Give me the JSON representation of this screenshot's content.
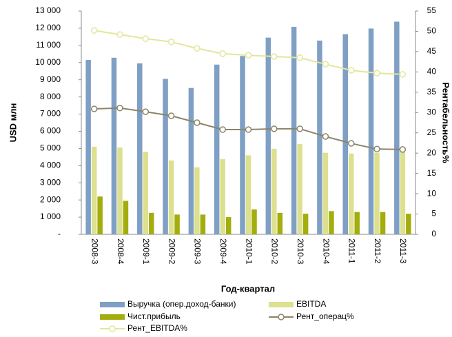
{
  "chart_data": {
    "type": "bar_line",
    "x_label": "Год-квартал",
    "y_label": "USD млн",
    "y2_label": "Рентабельность%",
    "categories": [
      "2008-3",
      "2008-4",
      "2009-1",
      "2009-2",
      "2009-3",
      "2009-4",
      "2010-1",
      "2010-2",
      "2010-3",
      "2010-4",
      "2011-1",
      "2011-2",
      "2011-3"
    ],
    "ylim": [
      0,
      13000
    ],
    "yticks": [
      {
        "value": 0,
        "label": "-"
      },
      {
        "value": 1000,
        "label": "1 000"
      },
      {
        "value": 2000,
        "label": "2 000"
      },
      {
        "value": 3000,
        "label": "3 000"
      },
      {
        "value": 4000,
        "label": "4 000"
      },
      {
        "value": 5000,
        "label": "5 000"
      },
      {
        "value": 6000,
        "label": "6 000"
      },
      {
        "value": 7000,
        "label": "7 000"
      },
      {
        "value": 8000,
        "label": "8 000"
      },
      {
        "value": 9000,
        "label": "9 000"
      },
      {
        "value": 10000,
        "label": "10 000"
      },
      {
        "value": 11000,
        "label": "11 000"
      },
      {
        "value": 12000,
        "label": "12 000"
      },
      {
        "value": 13000,
        "label": "13 000"
      }
    ],
    "y2lim": [
      0,
      55
    ],
    "y2ticks": [
      0,
      5,
      10,
      15,
      20,
      25,
      30,
      35,
      40,
      45,
      50,
      55
    ],
    "series": [
      {
        "name": "Выручка (опер.доход-банки)",
        "type": "bar",
        "color": "#7f9fc4",
        "values": [
          10150,
          10280,
          9950,
          9050,
          8520,
          9880,
          10380,
          11450,
          12080,
          11280,
          11650,
          11980,
          12380
        ]
      },
      {
        "name": "EBITDA",
        "type": "bar",
        "color": "#dde08f",
        "values": [
          5100,
          5050,
          4800,
          4300,
          3900,
          4380,
          4600,
          4980,
          5250,
          4750,
          4700,
          4750,
          4850
        ]
      },
      {
        "name": "Чист.прибыль",
        "type": "bar",
        "color": "#a3ad0d",
        "values": [
          2200,
          1950,
          1250,
          1150,
          1150,
          1000,
          1450,
          1250,
          1200,
          1350,
          1300,
          1300,
          1200
        ]
      },
      {
        "name": "Рент_операц%",
        "type": "line",
        "axis": "y2",
        "color": "#8b8468",
        "values": [
          30.9,
          31.1,
          30.2,
          29.2,
          27.5,
          25.8,
          25.8,
          26.0,
          26.0,
          24.1,
          22.4,
          21.0,
          20.9
        ]
      },
      {
        "name": "Рент_EBITDA%",
        "type": "line",
        "axis": "y2",
        "color": "#e3e69a",
        "values": [
          50.2,
          49.2,
          48.2,
          47.4,
          45.8,
          44.5,
          44.1,
          43.8,
          43.5,
          41.9,
          40.4,
          39.7,
          39.4
        ]
      }
    ]
  }
}
